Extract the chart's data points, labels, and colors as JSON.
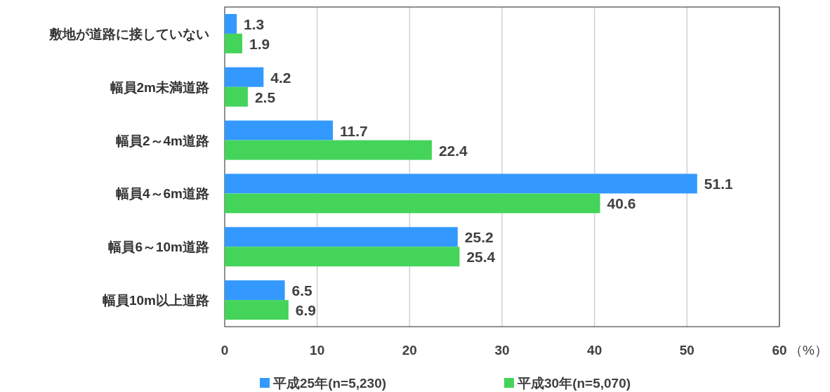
{
  "chart_data": {
    "type": "bar",
    "orientation": "horizontal",
    "categories": [
      "敷地が道路に接していない",
      "幅員2m未満道路",
      "幅員2～4m道路",
      "幅員4～6m道路",
      "幅員6～10m道路",
      "幅員10m以上道路"
    ],
    "series": [
      {
        "name": "平成25年(n=5,230)",
        "color": "#3399ff",
        "values": [
          1.3,
          4.2,
          11.7,
          51.1,
          25.2,
          6.5
        ]
      },
      {
        "name": "平成30年(n=5,070)",
        "color": "#44d45a",
        "values": [
          1.9,
          2.5,
          22.4,
          40.6,
          25.4,
          6.9
        ]
      }
    ],
    "xlim": [
      0,
      60
    ],
    "xticks": [
      0,
      10,
      20,
      30,
      40,
      50,
      60
    ],
    "xlabel": "（%）",
    "grid": "x",
    "legend": "bottom",
    "data_labels": true
  }
}
